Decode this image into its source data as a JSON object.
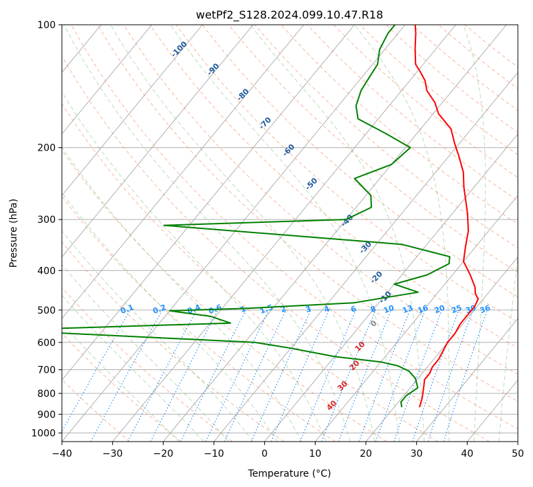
{
  "chart_data": {
    "type": "line",
    "subtype": "skew-T log-P diagram",
    "title": "wetPf2_S128.2024.099.10.47.R18",
    "xlabel": "Temperature (°C)",
    "ylabel": "Pressure (hPa)",
    "xlim": [
      -40,
      50
    ],
    "ylim": [
      1050,
      100
    ],
    "yscale": "log",
    "grid": true,
    "x_ticks": [
      "−40",
      "−30",
      "−20",
      "−10",
      "0",
      "10",
      "20",
      "30",
      "40",
      "50"
    ],
    "y_ticks": [
      "100",
      "200",
      "300",
      "400",
      "500",
      "600",
      "700",
      "800",
      "900",
      "1000"
    ],
    "series": [
      {
        "role": "temperature",
        "color": "#ff0000",
        "points": [
          [
            25.0,
            865
          ],
          [
            24.0,
            820
          ],
          [
            22.5,
            770
          ],
          [
            21.5,
            740
          ],
          [
            21.5,
            715
          ],
          [
            21.0,
            690
          ],
          [
            21.0,
            660
          ],
          [
            20.5,
            630
          ],
          [
            20.0,
            600
          ],
          [
            20.0,
            570
          ],
          [
            19.5,
            540
          ],
          [
            19.5,
            515
          ],
          [
            19.5,
            490
          ],
          [
            19.0,
            470
          ],
          [
            17.5,
            455
          ],
          [
            16.5,
            440
          ],
          [
            13.5,
            410
          ],
          [
            10.0,
            380
          ],
          [
            8.0,
            350
          ],
          [
            6.0,
            320
          ],
          [
            3.0,
            290
          ],
          [
            -2.0,
            250
          ],
          [
            -4.5,
            230
          ],
          [
            -8.0,
            210
          ],
          [
            -11.0,
            195
          ],
          [
            -14.0,
            180
          ],
          [
            -19.0,
            165
          ],
          [
            -21.5,
            155
          ],
          [
            -25.0,
            145
          ],
          [
            -27.0,
            137
          ],
          [
            -29.5,
            130
          ],
          [
            -31.5,
            125
          ],
          [
            -34.0,
            115
          ],
          [
            -36.5,
            105
          ],
          [
            -38.0,
            100
          ]
        ]
      },
      {
        "role": "dewpoint",
        "color": "#008000",
        "points": [
          [
            21.5,
            865
          ],
          [
            20.5,
            840
          ],
          [
            20.5,
            810
          ],
          [
            21.5,
            775
          ],
          [
            19.5,
            735
          ],
          [
            17.0,
            705
          ],
          [
            14.0,
            685
          ],
          [
            10.0,
            670
          ],
          [
            0.0,
            650
          ],
          [
            -10.0,
            620
          ],
          [
            -18.0,
            600
          ],
          [
            -70.0,
            560
          ],
          [
            -26.0,
            538
          ],
          [
            -31.0,
            518
          ],
          [
            -40.0,
            502
          ],
          [
            -25.0,
            495
          ],
          [
            -5.0,
            480
          ],
          [
            6.0,
            452
          ],
          [
            0.0,
            432
          ],
          [
            5.0,
            410
          ],
          [
            7.5,
            385
          ],
          [
            6.5,
            370
          ],
          [
            -5.0,
            345
          ],
          [
            -55.0,
            310
          ],
          [
            -20.0,
            300
          ],
          [
            -17.0,
            280
          ],
          [
            -19.0,
            262
          ],
          [
            -25.0,
            238
          ],
          [
            -20.0,
            220
          ],
          [
            -19.0,
            200
          ],
          [
            -26.0,
            185
          ],
          [
            -34.0,
            170
          ],
          [
            -36.5,
            158
          ],
          [
            -38.0,
            145
          ],
          [
            -38.5,
            135
          ],
          [
            -39.0,
            125
          ],
          [
            -41.0,
            115
          ],
          [
            -42.0,
            105
          ],
          [
            -42.0,
            100
          ]
        ]
      }
    ],
    "dry_adiabats_labels": [
      "-100",
      "-90",
      "-80",
      "-70",
      "-60",
      "-50",
      "-40",
      "-30",
      "-20",
      "-10",
      "0",
      "10",
      "20",
      "30",
      "40"
    ],
    "mixing_ratio_labels": [
      "0.1",
      "0.2",
      "0.4",
      "0.6",
      "1",
      "1.5",
      "2",
      "3",
      "4",
      "6",
      "8",
      "10",
      "13",
      "16",
      "20",
      "25",
      "30",
      "36"
    ],
    "colors": {
      "temperature": "#ff0000",
      "dewpoint": "#008000",
      "isotherm": "#808080",
      "dry_adiabat": "#f4a582",
      "moist_adiabat": "#7fbf7f",
      "mixing_ratio": "#1e90ff",
      "dry_label_cold": "#1f5a9a",
      "dry_label_warm": "#d62728"
    }
  }
}
